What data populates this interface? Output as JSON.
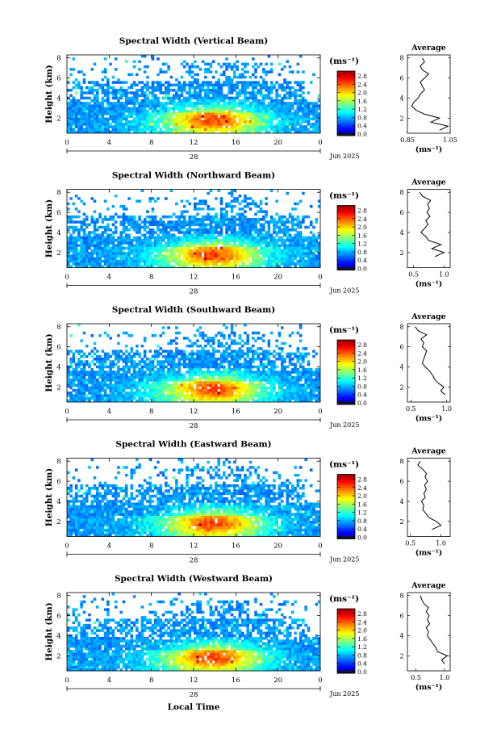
{
  "figure": {
    "xlabel": "Local Time",
    "date_label": "Jun 2025",
    "day_label": "28",
    "colorbar_unit": "(ms⁻¹)",
    "profile_title": "Average",
    "profile_xlabel": "(ms⁻¹)"
  },
  "chart_data": [
    {
      "type": "heatmap",
      "title": "Spectral Width (Vertical Beam)",
      "ylabel": "Height (km)",
      "x_ticks": [
        "0",
        "4",
        "8",
        "12",
        "16",
        "20",
        "0"
      ],
      "xlim": [
        0,
        24
      ],
      "y_ticks": [
        "2",
        "4",
        "6",
        "8"
      ],
      "ylim": [
        0.5,
        8.3
      ],
      "colorbar_ticks": [
        "0.0",
        "0.4",
        "0.8",
        "1.2",
        "1.6",
        "2.0",
        "2.4",
        "2.8"
      ],
      "colorbar_range": [
        0,
        3.0
      ],
      "profile": {
        "title": "Average",
        "xlim": [
          0.85,
          1.05
        ],
        "x_ticks": [
          "0.85",
          "1.05"
        ],
        "y_ticks": [
          "2",
          "4",
          "6",
          "8"
        ],
        "heights": [
          0.8,
          1.2,
          1.6,
          2.0,
          2.4,
          2.8,
          3.2,
          3.6,
          4.0,
          4.4,
          4.8,
          5.2,
          5.6,
          6.0,
          6.4,
          6.8,
          7.2,
          7.6,
          8.0
        ],
        "values": [
          1.0,
          1.04,
          0.96,
          1.0,
          0.93,
          0.89,
          0.87,
          0.88,
          0.9,
          0.91,
          0.93,
          0.92,
          0.91,
          0.93,
          0.95,
          0.92,
          0.91,
          0.93,
          0.92
        ]
      }
    },
    {
      "type": "heatmap",
      "title": "Spectral Width (Northward Beam)",
      "ylabel": "Height (km)",
      "x_ticks": [
        "0",
        "4",
        "8",
        "12",
        "16",
        "20",
        "0"
      ],
      "xlim": [
        0,
        24
      ],
      "y_ticks": [
        "2",
        "4",
        "6",
        "8"
      ],
      "ylim": [
        0.5,
        8.3
      ],
      "colorbar_ticks": [
        "0.0",
        "0.4",
        "0.8",
        "1.2",
        "1.6",
        "2.0",
        "2.4",
        "2.8"
      ],
      "colorbar_range": [
        0,
        3.0
      ],
      "profile": {
        "title": "Average",
        "xlim": [
          0.4,
          1.1
        ],
        "x_ticks": [
          "0.5",
          "1.0"
        ],
        "y_ticks": [
          "2",
          "4",
          "6",
          "8"
        ],
        "heights": [
          1.6,
          2.0,
          2.4,
          2.8,
          3.2,
          3.6,
          4.0,
          4.4,
          4.8,
          5.2,
          5.6,
          6.0,
          6.4,
          6.8,
          7.2,
          7.6,
          8.0
        ],
        "values": [
          0.85,
          1.0,
          0.8,
          0.95,
          0.75,
          0.7,
          0.62,
          0.68,
          0.74,
          0.7,
          0.77,
          0.72,
          0.76,
          0.73,
          0.78,
          0.65,
          0.6
        ]
      }
    },
    {
      "type": "heatmap",
      "title": "Spectral Width (Southward Beam)",
      "ylabel": "Height (km)",
      "x_ticks": [
        "0",
        "4",
        "8",
        "12",
        "16",
        "20",
        "0"
      ],
      "xlim": [
        0,
        24
      ],
      "y_ticks": [
        "2",
        "4",
        "6",
        "8"
      ],
      "ylim": [
        0.5,
        8.3
      ],
      "colorbar_ticks": [
        "0.0",
        "0.4",
        "0.8",
        "1.2",
        "1.6",
        "2.0",
        "2.4",
        "2.8"
      ],
      "colorbar_range": [
        0,
        3.0
      ],
      "profile": {
        "title": "Average",
        "xlim": [
          0.45,
          1.05
        ],
        "x_ticks": [
          "0.5",
          "1.0"
        ],
        "y_ticks": [
          "2",
          "4",
          "6",
          "8"
        ],
        "heights": [
          1.2,
          1.6,
          2.0,
          2.4,
          2.8,
          3.2,
          3.6,
          4.0,
          4.4,
          4.8,
          5.2,
          5.6,
          6.0,
          6.4,
          6.8,
          7.2,
          7.6,
          8.0
        ],
        "values": [
          0.98,
          0.92,
          0.96,
          0.88,
          0.83,
          0.8,
          0.76,
          0.7,
          0.66,
          0.68,
          0.7,
          0.72,
          0.66,
          0.68,
          0.64,
          0.72,
          0.6,
          0.56
        ]
      }
    },
    {
      "type": "heatmap",
      "title": "Spectral Width (Eastward Beam)",
      "ylabel": "Height (km)",
      "x_ticks": [
        "0",
        "4",
        "8",
        "12",
        "16",
        "20",
        "0"
      ],
      "xlim": [
        0,
        24
      ],
      "y_ticks": [
        "2",
        "4",
        "6",
        "8"
      ],
      "ylim": [
        0.5,
        8.3
      ],
      "colorbar_ticks": [
        "0.0",
        "0.4",
        "0.8",
        "1.2",
        "1.6",
        "2.0",
        "2.4",
        "2.8"
      ],
      "colorbar_range": [
        0,
        3.0
      ],
      "profile": {
        "title": "Average",
        "xlim": [
          0.45,
          1.15
        ],
        "x_ticks": [
          "0.5",
          "1.0"
        ],
        "y_ticks": [
          "2",
          "4",
          "6",
          "8"
        ],
        "heights": [
          1.2,
          1.6,
          2.0,
          2.4,
          2.8,
          3.2,
          3.6,
          4.0,
          4.4,
          4.8,
          5.2,
          5.6,
          6.0,
          6.4,
          6.8,
          7.2,
          7.6,
          8.0
        ],
        "values": [
          0.85,
          1.0,
          0.92,
          0.8,
          0.75,
          0.7,
          0.72,
          0.68,
          0.74,
          0.72,
          0.76,
          0.73,
          0.78,
          0.74,
          0.76,
          0.7,
          0.62,
          0.66
        ]
      }
    },
    {
      "type": "heatmap",
      "title": "Spectral Width (Westward Beam)",
      "ylabel": "Height (km)",
      "x_ticks": [
        "0",
        "4",
        "8",
        "12",
        "16",
        "20",
        "0"
      ],
      "xlim": [
        0,
        24
      ],
      "y_ticks": [
        "2",
        "4",
        "6",
        "8"
      ],
      "ylim": [
        0.5,
        8.3
      ],
      "colorbar_ticks": [
        "0.0",
        "0.4",
        "0.8",
        "1.2",
        "1.6",
        "2.0",
        "2.4",
        "2.8"
      ],
      "colorbar_range": [
        0,
        3.0
      ],
      "profile": {
        "title": "Average",
        "xlim": [
          0.35,
          1.1
        ],
        "x_ticks": [
          "0.5",
          "1.0"
        ],
        "y_ticks": [
          "2",
          "4",
          "6",
          "8"
        ],
        "heights": [
          1.2,
          1.6,
          2.0,
          2.4,
          2.8,
          3.2,
          3.6,
          4.0,
          4.4,
          4.8,
          5.2,
          5.6,
          6.0,
          6.4,
          6.8,
          7.2,
          7.6,
          8.0
        ],
        "values": [
          1.0,
          0.95,
          1.05,
          0.88,
          0.85,
          0.8,
          0.75,
          0.7,
          0.72,
          0.68,
          0.74,
          0.7,
          0.73,
          0.68,
          0.72,
          0.64,
          0.6,
          0.58
        ]
      }
    }
  ]
}
